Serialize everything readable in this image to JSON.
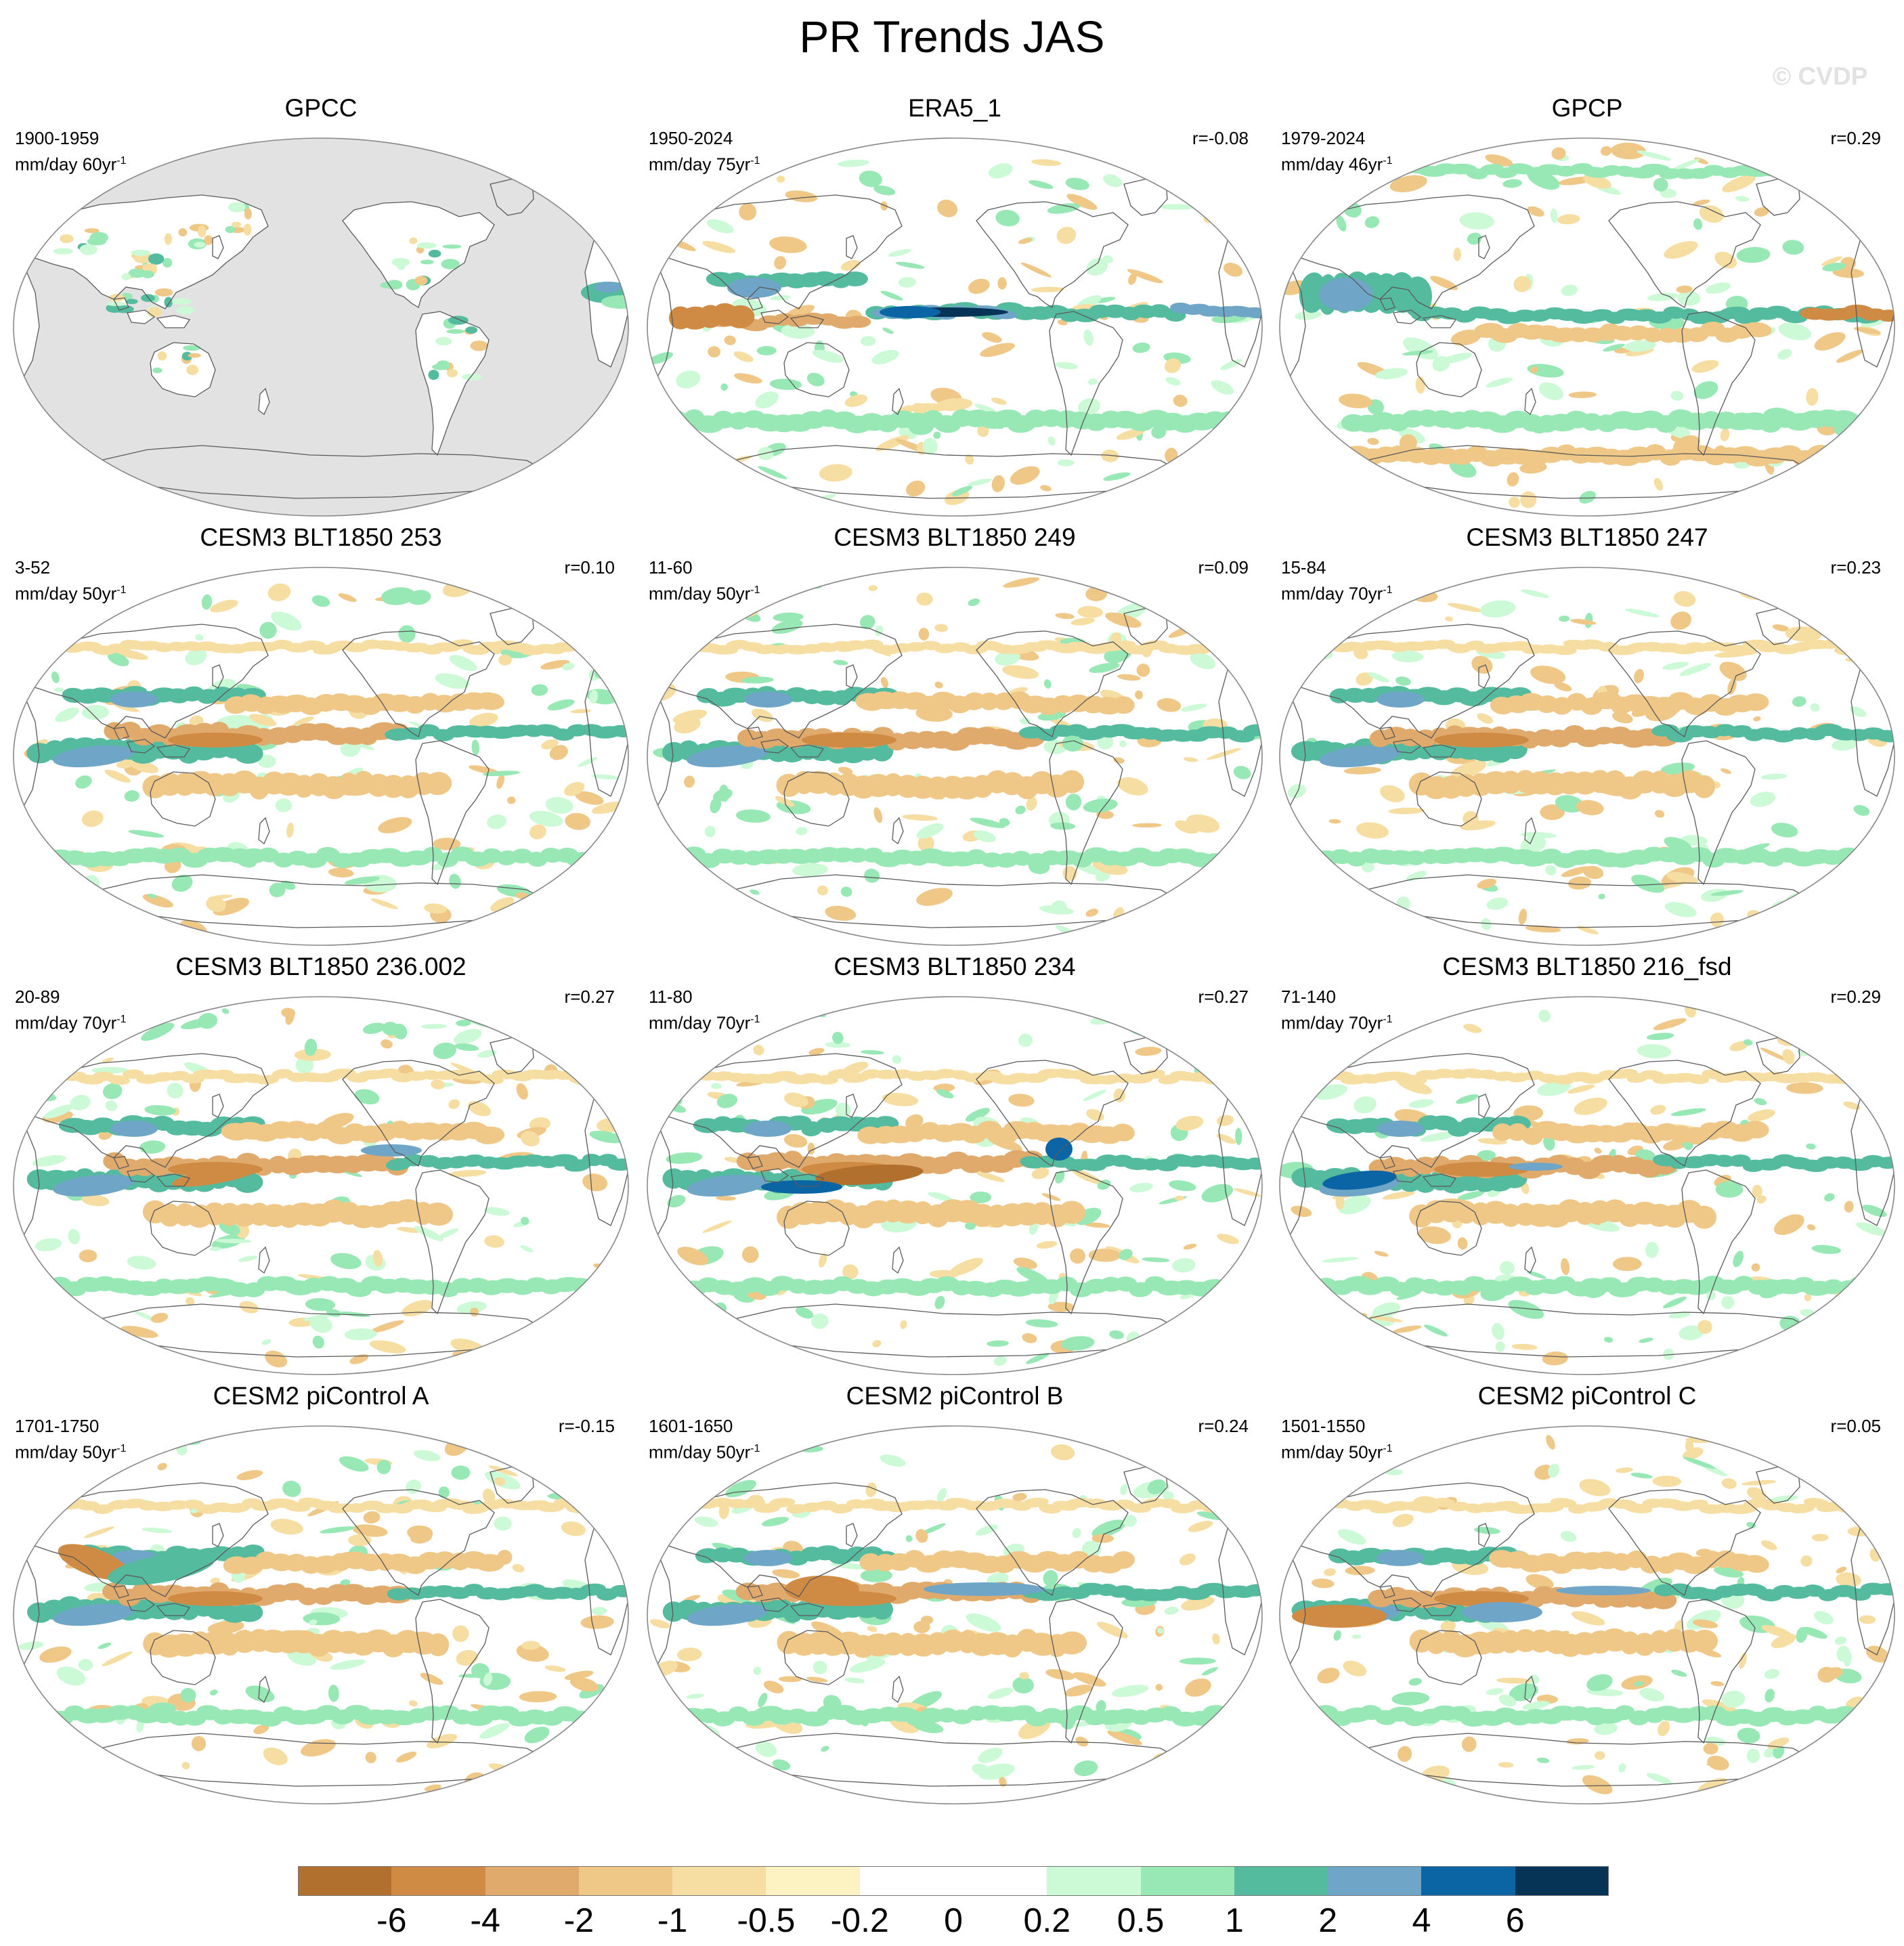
{
  "title": "PR Trends JAS",
  "watermark": "© CVDP",
  "panels": [
    {
      "title": "GPCC",
      "period": "1900-1959",
      "units": "mm/day",
      "trend_len": "60yr",
      "trend_exp": "-1",
      "r": "",
      "variant": "obs_partial"
    },
    {
      "title": "ERA5_1",
      "period": "1950-2024",
      "units": "mm/day",
      "trend_len": "75yr",
      "trend_exp": "-1",
      "r": "r=-0.08",
      "variant": "era5"
    },
    {
      "title": "GPCP",
      "period": "1979-2024",
      "units": "mm/day",
      "trend_len": "46yr",
      "trend_exp": "-1",
      "r": "r=0.29",
      "variant": "gpcp"
    },
    {
      "title": "CESM3 BLT1850 253",
      "period": "3-52",
      "units": "mm/day",
      "trend_len": "50yr",
      "trend_exp": "-1",
      "r": "r=0.10",
      "variant": "model_a"
    },
    {
      "title": "CESM3 BLT1850 249",
      "period": "11-60",
      "units": "mm/day",
      "trend_len": "50yr",
      "trend_exp": "-1",
      "r": "r=0.09",
      "variant": "model_b"
    },
    {
      "title": "CESM3 BLT1850 247",
      "period": "15-84",
      "units": "mm/day",
      "trend_len": "70yr",
      "trend_exp": "-1",
      "r": "r=0.23",
      "variant": "model_c"
    },
    {
      "title": "CESM3 BLT1850 236.002",
      "period": "20-89",
      "units": "mm/day",
      "trend_len": "70yr",
      "trend_exp": "-1",
      "r": "r=0.27",
      "variant": "model_d"
    },
    {
      "title": "CESM3 BLT1850 234",
      "period": "11-80",
      "units": "mm/day",
      "trend_len": "70yr",
      "trend_exp": "-1",
      "r": "r=0.27",
      "variant": "model_e"
    },
    {
      "title": "CESM3 BLT1850 216_fsd",
      "period": "71-140",
      "units": "mm/day",
      "trend_len": "70yr",
      "trend_exp": "-1",
      "r": "r=0.29",
      "variant": "model_f"
    },
    {
      "title": "CESM2 piControl A",
      "period": "1701-1750",
      "units": "mm/day",
      "trend_len": "50yr",
      "trend_exp": "-1",
      "r": "r=-0.15",
      "variant": "model_g"
    },
    {
      "title": "CESM2 piControl B",
      "period": "1601-1650",
      "units": "mm/day",
      "trend_len": "50yr",
      "trend_exp": "-1",
      "r": "r=0.24",
      "variant": "model_h"
    },
    {
      "title": "CESM2 piControl C",
      "period": "1501-1550",
      "units": "mm/day",
      "trend_len": "50yr",
      "trend_exp": "-1",
      "r": "r=0.05",
      "variant": "model_i"
    }
  ],
  "colorbar": {
    "colors": [
      "#b2702f",
      "#cf8a44",
      "#e0aa6c",
      "#efc888",
      "#f6dea2",
      "#fdf3c2",
      "#ffffff",
      "#ffffff",
      "#cdfad6",
      "#97e8b5",
      "#55bb9e",
      "#6fa6c7",
      "#0b65a5",
      "#053456"
    ],
    "labels": [
      "-6",
      "-4",
      "-2",
      "-1",
      "-0.5",
      "-0.2",
      "0",
      "0.2",
      "0.5",
      "1",
      "2",
      "4",
      "6"
    ]
  },
  "palette": {
    "land_fill": "#e2e2e2",
    "coast": "#5a5a5a",
    "frame": "#888888"
  }
}
